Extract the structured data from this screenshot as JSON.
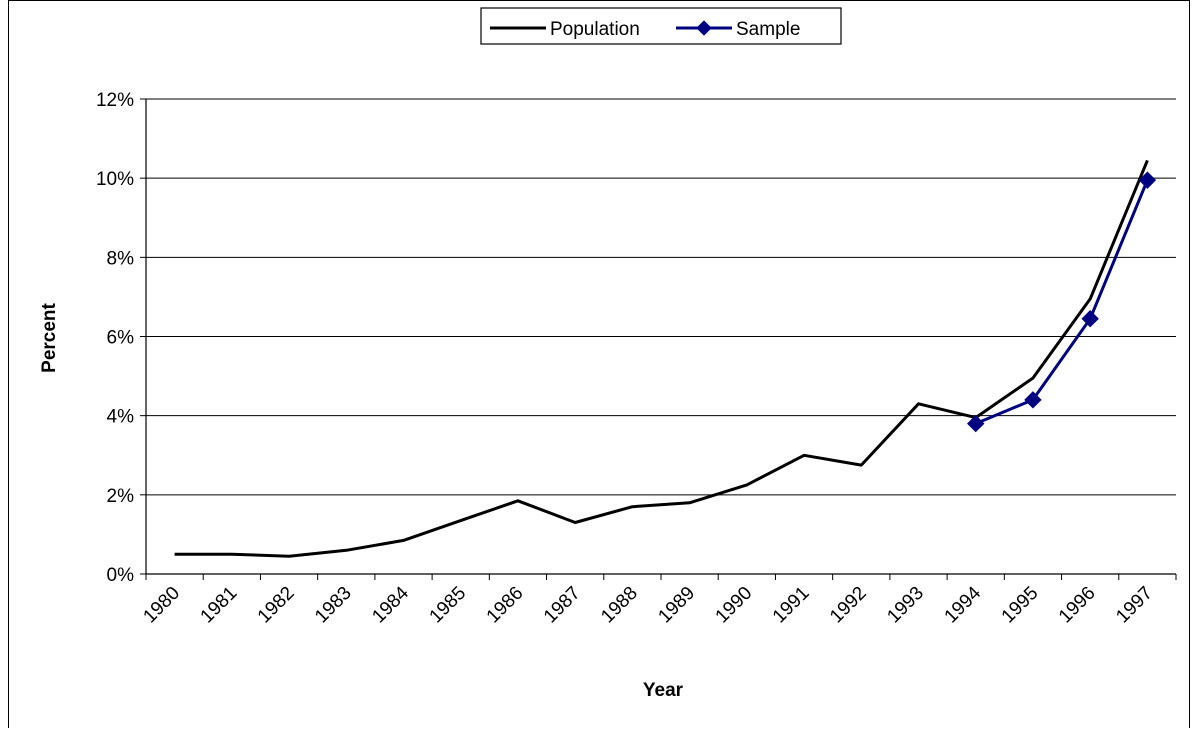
{
  "chart_data": {
    "type": "line",
    "categories": [
      "1980",
      "1981",
      "1982",
      "1983",
      "1984",
      "1985",
      "1986",
      "1987",
      "1988",
      "1989",
      "1990",
      "1991",
      "1992",
      "1993",
      "1994",
      "1995",
      "1996",
      "1997"
    ],
    "series": [
      {
        "name": "Population",
        "color": "#000000",
        "marker": "none",
        "values": [
          0.5,
          0.5,
          0.45,
          0.6,
          0.85,
          1.35,
          1.85,
          1.3,
          1.7,
          1.8,
          2.25,
          3.0,
          2.75,
          4.3,
          3.95,
          4.95,
          6.95,
          10.45
        ]
      },
      {
        "name": "Sample",
        "color": "#000080",
        "marker": "diamond",
        "values": [
          null,
          null,
          null,
          null,
          null,
          null,
          null,
          null,
          null,
          null,
          null,
          null,
          null,
          null,
          3.8,
          4.4,
          6.45,
          9.95
        ]
      }
    ],
    "xlabel": "Year",
    "ylabel": "Percent",
    "ylim": [
      0,
      12
    ],
    "yticks": [
      0,
      2,
      4,
      6,
      8,
      10,
      12
    ],
    "ytick_suffix": "%",
    "grid": true,
    "legend_position": "top-center"
  }
}
